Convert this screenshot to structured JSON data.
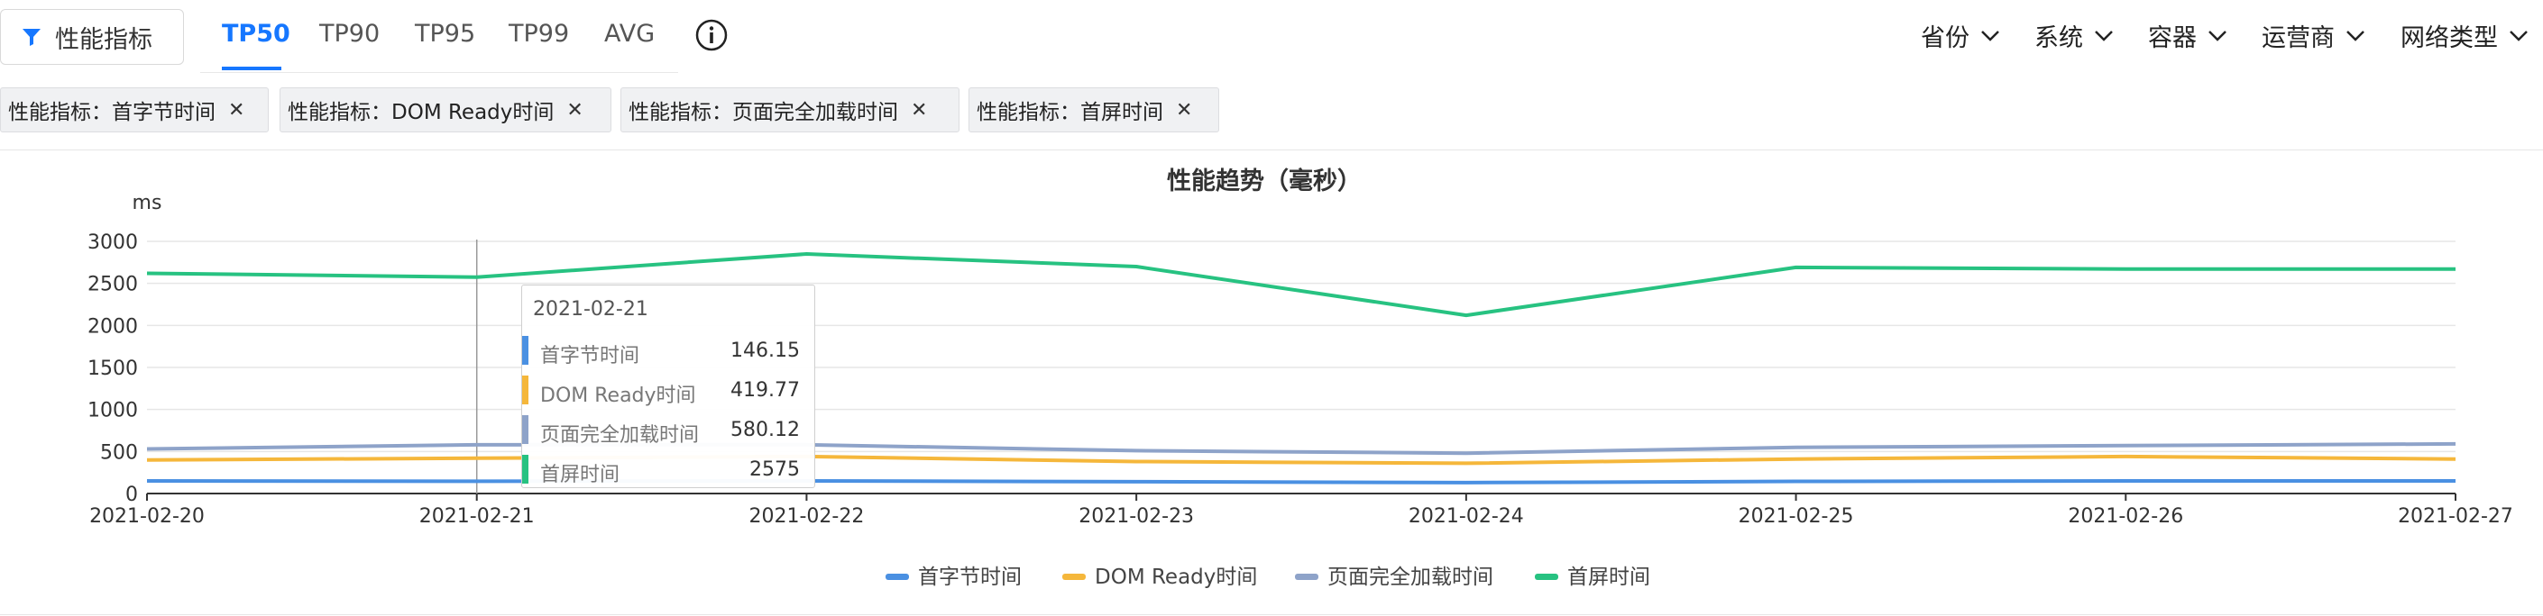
{
  "toolbar": {
    "filter_label": "性能指标",
    "tabs": [
      {
        "label": "TP50",
        "active": true
      },
      {
        "label": "TP90",
        "active": false
      },
      {
        "label": "TP95",
        "active": false
      },
      {
        "label": "TP99",
        "active": false
      },
      {
        "label": "AVG",
        "active": false
      }
    ],
    "dropdowns": [
      "省份",
      "系统",
      "容器",
      "运营商",
      "网络类型"
    ]
  },
  "tags": [
    "性能指标：首字节时间",
    "性能指标：DOM Ready时间",
    "性能指标：页面完全加载时间",
    "性能指标：首屏时间"
  ],
  "colors": {
    "accent": "#1677ff",
    "series": [
      "#4a90e2",
      "#f5b73b",
      "#8ea3c9",
      "#27c281"
    ]
  },
  "tooltip": {
    "date": "2021-02-21",
    "rows": [
      {
        "name": "首字节时间",
        "value": "146.15"
      },
      {
        "name": "DOM Ready时间",
        "value": "419.77"
      },
      {
        "name": "页面完全加载时间",
        "value": "580.12"
      },
      {
        "name": "首屏时间",
        "value": "2575"
      }
    ]
  },
  "chart_data": {
    "type": "line",
    "title": "性能趋势（毫秒）",
    "ylabel": "ms",
    "xlabel": "",
    "ylim": [
      0,
      3000
    ],
    "yticks": [
      0,
      500,
      1000,
      1500,
      2000,
      2500,
      3000
    ],
    "x": [
      "2021-02-20",
      "2021-02-21",
      "2021-02-22",
      "2021-02-23",
      "2021-02-24",
      "2021-02-25",
      "2021-02-26",
      "2021-02-27"
    ],
    "grid": true,
    "legend_position": "bottom",
    "series": [
      {
        "name": "首字节时间",
        "values": [
          150,
          146.15,
          150,
          140,
          130,
          145,
          150,
          150
        ]
      },
      {
        "name": "DOM Ready时间",
        "values": [
          400,
          419.77,
          440,
          380,
          360,
          410,
          440,
          410
        ]
      },
      {
        "name": "页面完全加载时间",
        "values": [
          530,
          580.12,
          580,
          510,
          480,
          550,
          570,
          590
        ]
      },
      {
        "name": "首屏时间",
        "values": [
          2620,
          2575,
          2850,
          2700,
          2120,
          2690,
          2670,
          2670
        ]
      }
    ]
  }
}
